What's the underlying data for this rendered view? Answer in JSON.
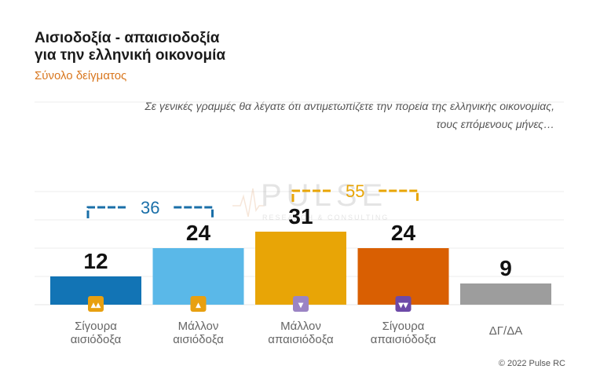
{
  "header": {
    "title_line1": "Αισιοδοξία - απαισιοδοξία",
    "title_line2": "για την ελληνική οικονομία",
    "subtitle": "Σύνολο δείγματος"
  },
  "question": {
    "line1": "Σε γενικές γραμμές θα λέγατε ότι αντιμετωπίζετε την πορεία της ελληνικής οικονομίας,",
    "line2": "τους επόμενους μήνες…"
  },
  "watermark": {
    "brand": "PULSE",
    "tagline": "RESEARCH & CONSULTING"
  },
  "footer": {
    "copyright": "© 2022 Pulse RC"
  },
  "chart_data": {
    "type": "bar",
    "categories": [
      [
        "Σίγουρα",
        "αισιόδοξα"
      ],
      [
        "Μάλλον",
        "αισιόδοξα"
      ],
      [
        "Μάλλον",
        "απαισιόδοξα"
      ],
      [
        "Σίγουρα",
        "απαισιόδοξα"
      ],
      [
        "ΔΓ/ΔΑ"
      ]
    ],
    "values": [
      12,
      24,
      31,
      24,
      9
    ],
    "colors": [
      "#1274b5",
      "#5ab8e8",
      "#e8a506",
      "#d95f02",
      "#9d9d9d"
    ],
    "icons": [
      "thumbs-up-double-icon",
      "thumbs-up-icon",
      "thumbs-down-icon",
      "thumbs-down-double-icon",
      ""
    ],
    "icon_colors": [
      "#e8a010",
      "#e8a010",
      "#9b84c4",
      "#6d4aa8",
      ""
    ],
    "groups": [
      {
        "label": "36",
        "from": 0,
        "to": 1,
        "color": "#1a6fa8"
      },
      {
        "label": "55",
        "from": 2,
        "to": 3,
        "color": "#e8a506"
      }
    ],
    "ylim": [
      0,
      50
    ],
    "gridlines": true,
    "title": "Αισιοδοξία - απαισιοδοξία για την ελληνική οικονομία",
    "xlabel": "",
    "ylabel": ""
  }
}
